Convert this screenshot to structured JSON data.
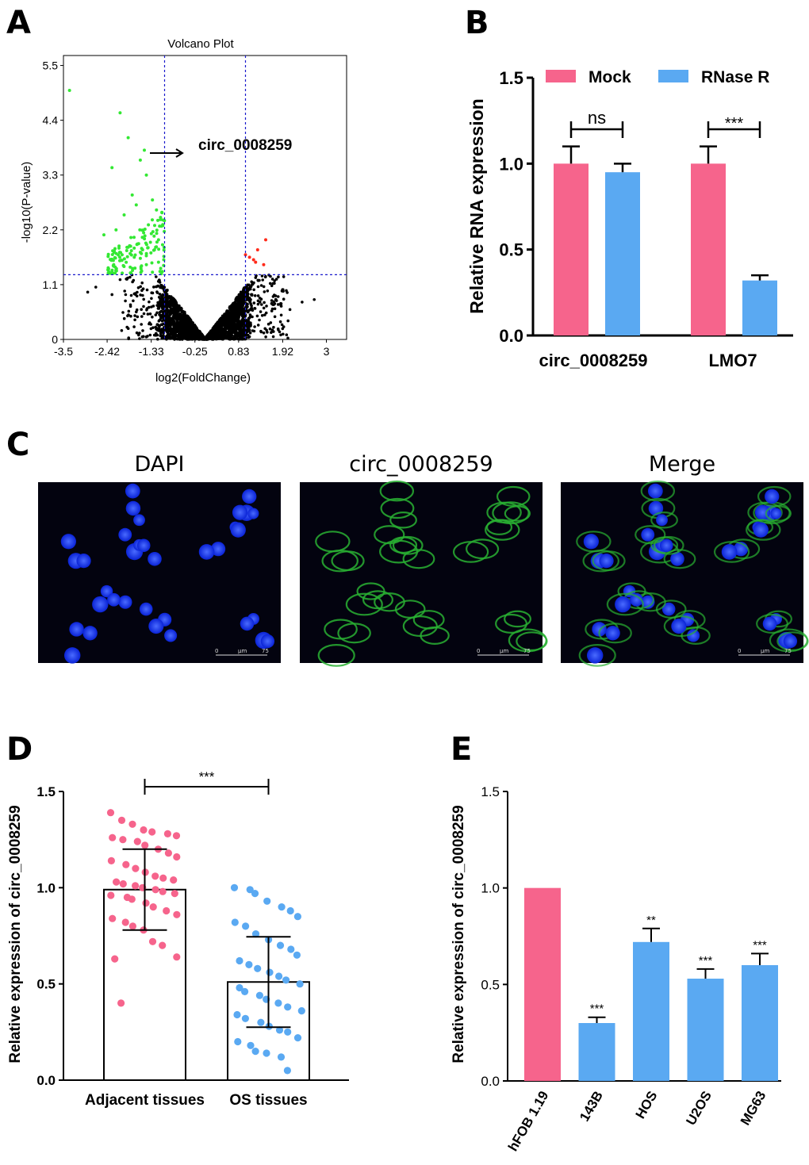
{
  "panels": {
    "A": "A",
    "B": "B",
    "C": "C",
    "D": "D",
    "E": "E"
  },
  "chart_data": [
    {
      "id": "A",
      "type": "scatter",
      "title": "Volcano Plot",
      "xlabel": "log2(FoldChange)",
      "ylabel": "-log10(P-value)",
      "xticks": [
        "-3.5",
        "-2.42",
        "-1.33",
        "-0.25",
        "0.83",
        "1.92",
        "3"
      ],
      "xtick_values": [
        -3.5,
        -2.42,
        -1.33,
        -0.25,
        0.83,
        1.92,
        3
      ],
      "yticks": [
        "0",
        "1.1",
        "2.2",
        "3.3",
        "4.4",
        "5.5"
      ],
      "ytick_values": [
        0,
        1.1,
        2.2,
        3.3,
        4.4,
        5.5
      ],
      "xlim": [
        -3.5,
        3.5
      ],
      "ylim": [
        0,
        5.7
      ],
      "thresholds": {
        "x": [
          -1,
          1
        ],
        "y": 1.3
      },
      "annotation": "circ_0008259",
      "colors": {
        "up": "#ff2a1a",
        "down": "#33e833",
        "ns": "#000000",
        "threshold": "#1a1acc"
      },
      "series": [
        {
          "name": "up",
          "x": [
            1.5,
            1.2,
            1.3,
            1.1,
            1.45,
            1.0,
            1.25
          ],
          "y": [
            2.0,
            1.6,
            1.8,
            1.65,
            1.5,
            1.7,
            1.55
          ]
        },
        {
          "name": "down",
          "x": [
            -3.35,
            -2.1,
            -1.9,
            -1.5,
            -1.6,
            -1.45,
            -2.3,
            -1.8,
            -1.3,
            -1.2,
            -2.0,
            -1.7,
            -1.1,
            -1.4,
            -2.5,
            -2.2,
            -1.55,
            -1.15,
            -1.05,
            -1.35,
            -1.9,
            -1.25,
            -1.6,
            -2.05,
            -1.75,
            -1.02,
            -1.15,
            -1.45,
            -1.85,
            -2.4,
            -1.3,
            -1.08
          ],
          "y": [
            5.0,
            4.55,
            4.05,
            3.8,
            3.6,
            3.3,
            3.45,
            2.9,
            2.8,
            2.6,
            2.5,
            2.7,
            2.45,
            2.3,
            2.1,
            2.2,
            2.05,
            2.0,
            1.9,
            1.95,
            1.85,
            1.8,
            1.75,
            1.7,
            1.65,
            1.6,
            1.55,
            1.5,
            1.45,
            1.4,
            1.35,
            1.32
          ]
        }
      ]
    },
    {
      "id": "B",
      "type": "bar",
      "categories": [
        "circ_0008259",
        "LMO7"
      ],
      "series": [
        {
          "name": "Mock",
          "values": [
            1.0,
            1.0
          ],
          "errors": [
            0.1,
            0.1
          ],
          "color": "#f6648c"
        },
        {
          "name": "RNase R",
          "values": [
            0.95,
            0.32
          ],
          "errors": [
            0.05,
            0.03
          ],
          "color": "#5aa9f2"
        }
      ],
      "ylabel": "Relative RNA expression",
      "yticks": [
        "0.0",
        "0.5",
        "1.0",
        "1.5"
      ],
      "ytick_values": [
        0,
        0.5,
        1.0,
        1.5
      ],
      "ylim": [
        0,
        1.5
      ],
      "significance": [
        "ns",
        "***"
      ],
      "legend": "top"
    },
    {
      "id": "D",
      "type": "bar",
      "categories": [
        "Adjacent tissues",
        "OS tissues"
      ],
      "values": [
        0.99,
        0.51
      ],
      "sd": [
        0.21,
        0.235
      ],
      "colors": [
        "#f6648c",
        "#5aa9f2"
      ],
      "points": [
        [
          1.39,
          1.35,
          1.33,
          1.3,
          1.29,
          1.28,
          1.27,
          1.26,
          1.25,
          1.24,
          1.22,
          1.2,
          1.18,
          1.16,
          1.14,
          1.12,
          1.1,
          1.08,
          1.06,
          1.05,
          1.04,
          1.03,
          1.02,
          1.01,
          1.0,
          0.99,
          0.98,
          0.97,
          0.96,
          0.95,
          0.94,
          0.92,
          0.9,
          0.88,
          0.86,
          0.84,
          0.82,
          0.8,
          0.78,
          0.72,
          0.7,
          0.64,
          0.63,
          0.4
        ],
        [
          1.0,
          0.99,
          0.97,
          0.93,
          0.9,
          0.88,
          0.85,
          0.82,
          0.8,
          0.76,
          0.73,
          0.7,
          0.68,
          0.65,
          0.62,
          0.6,
          0.58,
          0.56,
          0.54,
          0.52,
          0.5,
          0.48,
          0.46,
          0.44,
          0.42,
          0.4,
          0.38,
          0.36,
          0.34,
          0.32,
          0.3,
          0.28,
          0.26,
          0.25,
          0.22,
          0.2,
          0.18,
          0.15,
          0.14,
          0.12,
          0.05
        ]
      ],
      "ylabel": "Relative expression of  circ_0008259",
      "yticks": [
        "0.0",
        "0.5",
        "1.0",
        "1.5"
      ],
      "ytick_values": [
        0,
        0.5,
        1.0,
        1.5
      ],
      "ylim": [
        0,
        1.5
      ],
      "significance": "***"
    },
    {
      "id": "E",
      "type": "bar",
      "categories": [
        "hFOB 1.19",
        "143B",
        "HOS",
        "U2OS",
        "MG63"
      ],
      "values": [
        1.0,
        0.3,
        0.72,
        0.53,
        0.6
      ],
      "errors": [
        0,
        0.03,
        0.07,
        0.05,
        0.06
      ],
      "colors": [
        "#f6648c",
        "#5aa9f2",
        "#5aa9f2",
        "#5aa9f2",
        "#5aa9f2"
      ],
      "significance": [
        "",
        "***",
        "**",
        "***",
        "***"
      ],
      "ylabel": "Relative expression of  circ_0008259",
      "yticks": [
        "0.0",
        "0.5",
        "1.0",
        "1.5"
      ],
      "ytick_values": [
        0,
        0.5,
        1.0,
        1.5
      ],
      "ylim": [
        0,
        1.5
      ]
    }
  ],
  "microscopy": {
    "labels": [
      "DAPI",
      "circ_0008259",
      "Merge"
    ],
    "scalebar": {
      "start": "0",
      "unit": "µm",
      "end": "75"
    },
    "colors": {
      "background": "#03030f",
      "nucleus": "#1b3cff",
      "cytoplasm": "#29b032"
    }
  }
}
